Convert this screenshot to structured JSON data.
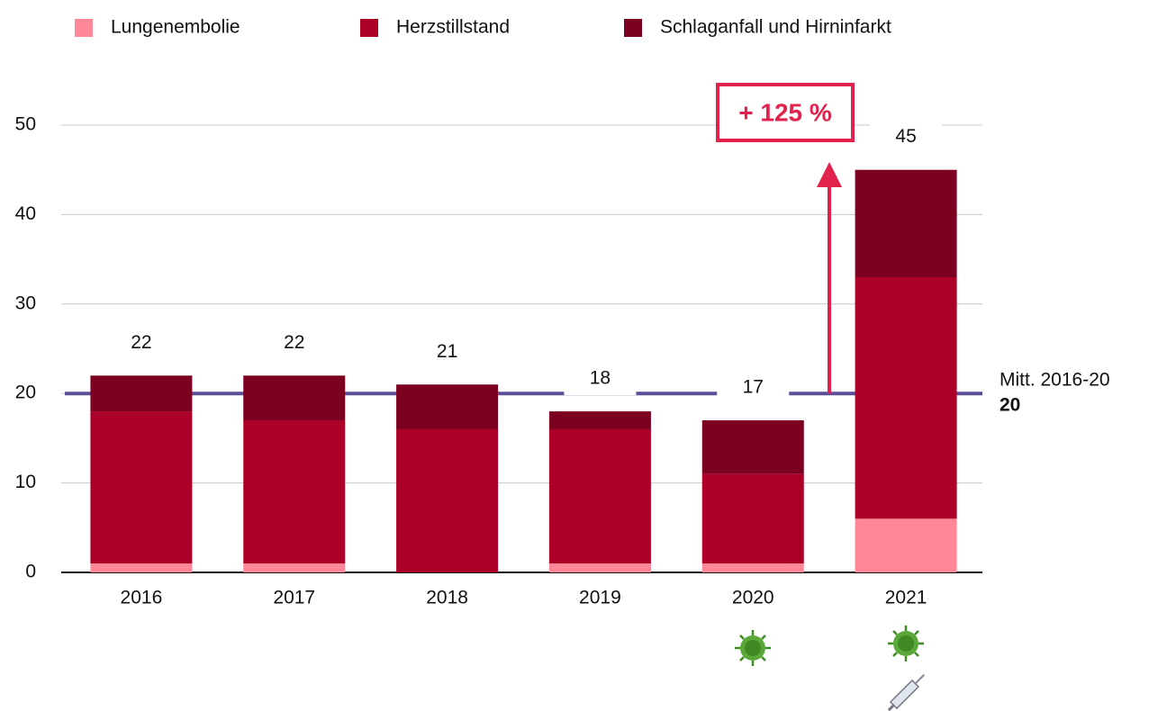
{
  "chart_data": {
    "type": "stacked_bar",
    "categories": [
      "2016",
      "2017",
      "2018",
      "2019",
      "2020",
      "2021"
    ],
    "series": [
      {
        "name": "Lungenembolie",
        "color": "#ff8797",
        "values": [
          1,
          1,
          0,
          1,
          1,
          6
        ]
      },
      {
        "name": "Herzstillstand",
        "color": "#ad0028",
        "values": [
          17,
          16,
          16,
          15,
          10,
          27
        ]
      },
      {
        "name": "Schlaganfall und Hirninfarkt",
        "color": "#7c0020",
        "values": [
          4,
          5,
          5,
          2,
          6,
          12
        ]
      }
    ],
    "totals": [
      22,
      22,
      21,
      18,
      17,
      45
    ],
    "ylim": [
      0,
      50
    ],
    "yticks": [
      0,
      10,
      20,
      30,
      40,
      50
    ],
    "grid": true,
    "mean_line": {
      "value": 20,
      "label": "Mitt. 2016-20",
      "value_label": "20",
      "color": "#5e4f9a"
    },
    "annotation": "+ 125 %"
  }
}
